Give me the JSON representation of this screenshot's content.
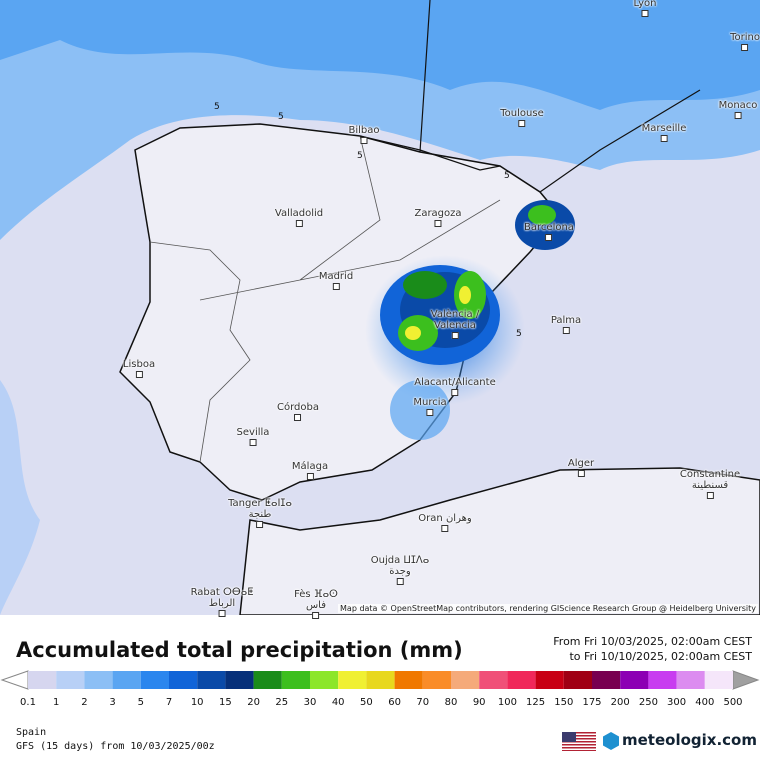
{
  "map": {
    "cities": [
      {
        "name": "Lyon"
      },
      {
        "name": "Torino"
      },
      {
        "name": "Bilbao"
      },
      {
        "name": "Toulouse"
      },
      {
        "name": "Marseille"
      },
      {
        "name": "Monaco"
      },
      {
        "name": "Valladolid"
      },
      {
        "name": "Zaragoza"
      },
      {
        "name": "Barcelona"
      },
      {
        "name": "Madrid"
      },
      {
        "name": "València /",
        "local": "Valencia"
      },
      {
        "name": "Palma"
      },
      {
        "name": "Lisboa"
      },
      {
        "name": "Alacant/Alicante"
      },
      {
        "name": "Murcia"
      },
      {
        "name": "Córdoba"
      },
      {
        "name": "Sevilla"
      },
      {
        "name": "Málaga"
      },
      {
        "name": "Alger"
      },
      {
        "name": "Constantine",
        "local": "قسنطينة"
      },
      {
        "name": "Tanger ⵟⴰⵏⵊⴰ",
        "local": "طنجة"
      },
      {
        "name": "Oran وهران"
      },
      {
        "name": "Oujda ⵡⵊⴷⴰ",
        "local": "وجدة"
      },
      {
        "name": "Rabat ⵔⴱⴰⵟ",
        "local": "الرباط"
      },
      {
        "name": "Fès ⴼⴰⵙ",
        "local": "فاس"
      }
    ],
    "contour_labels": [
      "5",
      "5",
      "5",
      "5",
      "5"
    ],
    "attribution": "Map data © OpenStreetMap contributors, rendering GIScience Research Group @ Heidelberg University"
  },
  "panel": {
    "title": "Accumulated total precipitation (mm)",
    "from": "From Fri 10/03/2025, 02:00am CEST",
    "to": "to Fri 10/10/2025, 02:00am CEST",
    "legend": {
      "values": [
        0.1,
        1,
        2,
        3,
        5,
        7,
        10,
        15,
        20,
        25,
        30,
        40,
        50,
        60,
        70,
        80,
        90,
        100,
        125,
        150,
        175,
        200,
        250,
        300,
        400,
        500
      ],
      "colors": [
        "#d6d6ef",
        "#b8d0f6",
        "#8cbff5",
        "#5aa5f2",
        "#2b86ee",
        "#1164d8",
        "#0a4aa8",
        "#06307a",
        "#1a8c1a",
        "#3cbf1e",
        "#8ce62a",
        "#f0f032",
        "#e8d81e",
        "#f07800",
        "#fa8c28",
        "#f5aa7a",
        "#f05078",
        "#f0285a",
        "#c80014",
        "#a00014",
        "#780050",
        "#8c00b4",
        "#c83cf0",
        "#dc8cf0",
        "#f5e6fa"
      ]
    },
    "region": "Spain",
    "model": "GFS (15 days) from 10/03/2025/00z",
    "brand": "meteologix.com"
  }
}
